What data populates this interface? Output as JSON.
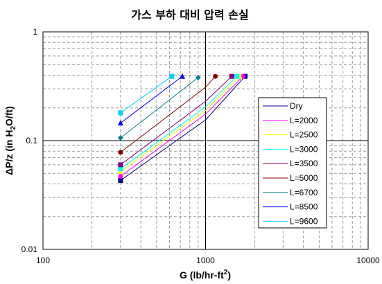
{
  "chart_data": {
    "type": "line",
    "title": "가스 부하 대비 압력 손실",
    "xlabel": {
      "main": "G (lb/hr-ft",
      "sup": "2",
      "tail": ")"
    },
    "ylabel": {
      "pre": "ΔP/z (in H",
      "sub": "2",
      "post": "O/ft)"
    },
    "x_scale": "log",
    "y_scale": "log",
    "xlim": [
      100,
      10000
    ],
    "ylim": [
      0.01,
      1
    ],
    "x_ticks": [
      "100",
      "1000",
      "10000"
    ],
    "y_ticks": [
      "0.01",
      "0.1",
      "1"
    ],
    "grid": true,
    "legend_position": "right",
    "series": [
      {
        "name": "Dry",
        "color": "#000080",
        "marker": "square",
        "x": [
          300,
          1000,
          1750
        ],
        "y": [
          0.043,
          0.155,
          0.39
        ]
      },
      {
        "name": "L=2000",
        "color": "#ff00ff",
        "marker": "circle",
        "x": [
          300,
          1000,
          1700
        ],
        "y": [
          0.047,
          0.175,
          0.39
        ]
      },
      {
        "name": "L=2500",
        "color": "#ffff00",
        "marker": "triangle",
        "x": [
          300,
          1000,
          1620
        ],
        "y": [
          0.052,
          0.19,
          0.39
        ]
      },
      {
        "name": "L=3000",
        "color": "#00ffff",
        "marker": "square",
        "x": [
          300,
          1000,
          1560
        ],
        "y": [
          0.055,
          0.205,
          0.39
        ]
      },
      {
        "name": "L=3500",
        "color": "#800080",
        "marker": "square",
        "x": [
          300,
          1000,
          1450
        ],
        "y": [
          0.06,
          0.23,
          0.39
        ]
      },
      {
        "name": "L=5000",
        "color": "#800000",
        "marker": "circle",
        "x": [
          300,
          1000,
          1150
        ],
        "y": [
          0.078,
          0.31,
          0.39
        ]
      },
      {
        "name": "L=6700",
        "color": "#008080",
        "marker": "diamond",
        "x": [
          300,
          900
        ],
        "y": [
          0.106,
          0.38
        ]
      },
      {
        "name": "L=8500",
        "color": "#0000ff",
        "marker": "triangle",
        "x": [
          300,
          720
        ],
        "y": [
          0.145,
          0.39
        ]
      },
      {
        "name": "L=9600",
        "color": "#00ccff",
        "marker": "square",
        "x": [
          300,
          620
        ],
        "y": [
          0.18,
          0.39
        ]
      }
    ]
  }
}
